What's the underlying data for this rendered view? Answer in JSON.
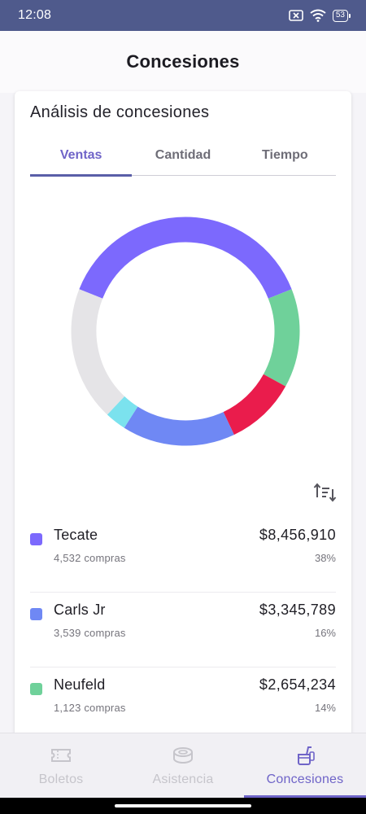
{
  "status_bar": {
    "time": "12:08",
    "battery": "53"
  },
  "header": {
    "title": "Concesiones"
  },
  "card": {
    "title": "Análisis de concesiones",
    "tabs": [
      {
        "label": "Ventas",
        "active": true
      },
      {
        "label": "Cantidad",
        "active": false
      },
      {
        "label": "Tiempo",
        "active": false
      }
    ]
  },
  "chart_data": {
    "type": "pie",
    "variant": "donut",
    "categories": [
      "Tecate",
      "Neufeld",
      "",
      "Carls Jr",
      "",
      ""
    ],
    "values": [
      38,
      14,
      10,
      16,
      3,
      19
    ],
    "colors": [
      "#7c69fd",
      "#6fd19a",
      "#ea1c4c",
      "#6f88f4",
      "#7be2ee",
      "#e5e4e7"
    ]
  },
  "items": [
    {
      "name": "Tecate",
      "purchases": "4,532 compras",
      "amount": "$8,456,910",
      "percent": "38%",
      "color": "#7c69fd"
    },
    {
      "name": "Carls Jr",
      "purchases": "3,539 compras",
      "amount": "$3,345,789",
      "percent": "16%",
      "color": "#6f88f4"
    },
    {
      "name": "Neufeld",
      "purchases": "1,123 compras",
      "amount": "$2,654,234",
      "percent": "14%",
      "color": "#6fd19a"
    }
  ],
  "bottom_nav": [
    {
      "label": "Boletos",
      "icon": "ticket-icon",
      "active": false
    },
    {
      "label": "Asistencia",
      "icon": "stadium-icon",
      "active": false
    },
    {
      "label": "Concesiones",
      "icon": "concessions-icon",
      "active": true
    }
  ],
  "colors": {
    "accent": "#6f64c8",
    "status_bar": "#4f5a8c"
  }
}
